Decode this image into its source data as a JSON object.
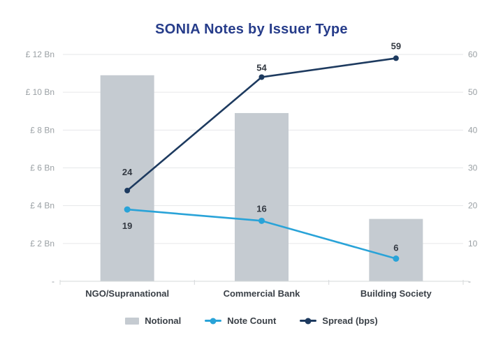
{
  "chart_data": {
    "type": "combo-bar-line",
    "title": "SONIA Notes by Issuer Type",
    "categories": [
      "NGO/Supranational",
      "Commercial Bank",
      "Building Society"
    ],
    "series": [
      {
        "name": "Notional",
        "type": "bar",
        "axis": "left",
        "color": "#c5cbd1",
        "values": [
          10.9,
          8.9,
          3.3
        ],
        "data_labels": false
      },
      {
        "name": "Note Count",
        "type": "line",
        "axis": "right",
        "color": "#29a3d8",
        "values": [
          19,
          16,
          6
        ],
        "data_labels": true,
        "label_dy": [
          24,
          -17,
          -15
        ],
        "marker_radius": 4.5
      },
      {
        "name": "Spread (bps)",
        "type": "line",
        "axis": "right",
        "color": "#1d3a5f",
        "values": [
          24,
          54,
          59
        ],
        "data_labels": true,
        "label_dy": [
          -26,
          -13,
          -17
        ],
        "marker_radius": 4
      }
    ],
    "left_axis": {
      "min": 0,
      "max": 12,
      "tick_labels_top_to_bottom": [
        "£ 12 Bn",
        "£ 10 Bn",
        "£ 8 Bn",
        "£ 6 Bn",
        "£ 4 Bn",
        "£ 2 Bn",
        "-"
      ]
    },
    "right_axis": {
      "min": 0,
      "max": 60,
      "tick_labels_top_to_bottom": [
        "60",
        "50",
        "40",
        "30",
        "20",
        "10",
        "-"
      ]
    },
    "grid": true,
    "legend_position": "bottom"
  },
  "colors": {
    "background": "#ffffff",
    "title_text": "#263c8a",
    "axis_text": "#9aa0a4",
    "category_text": "#3a4047",
    "data_label_text": "#333942",
    "gridline": "#e6e7e9",
    "baseline": "#d5d8da"
  }
}
